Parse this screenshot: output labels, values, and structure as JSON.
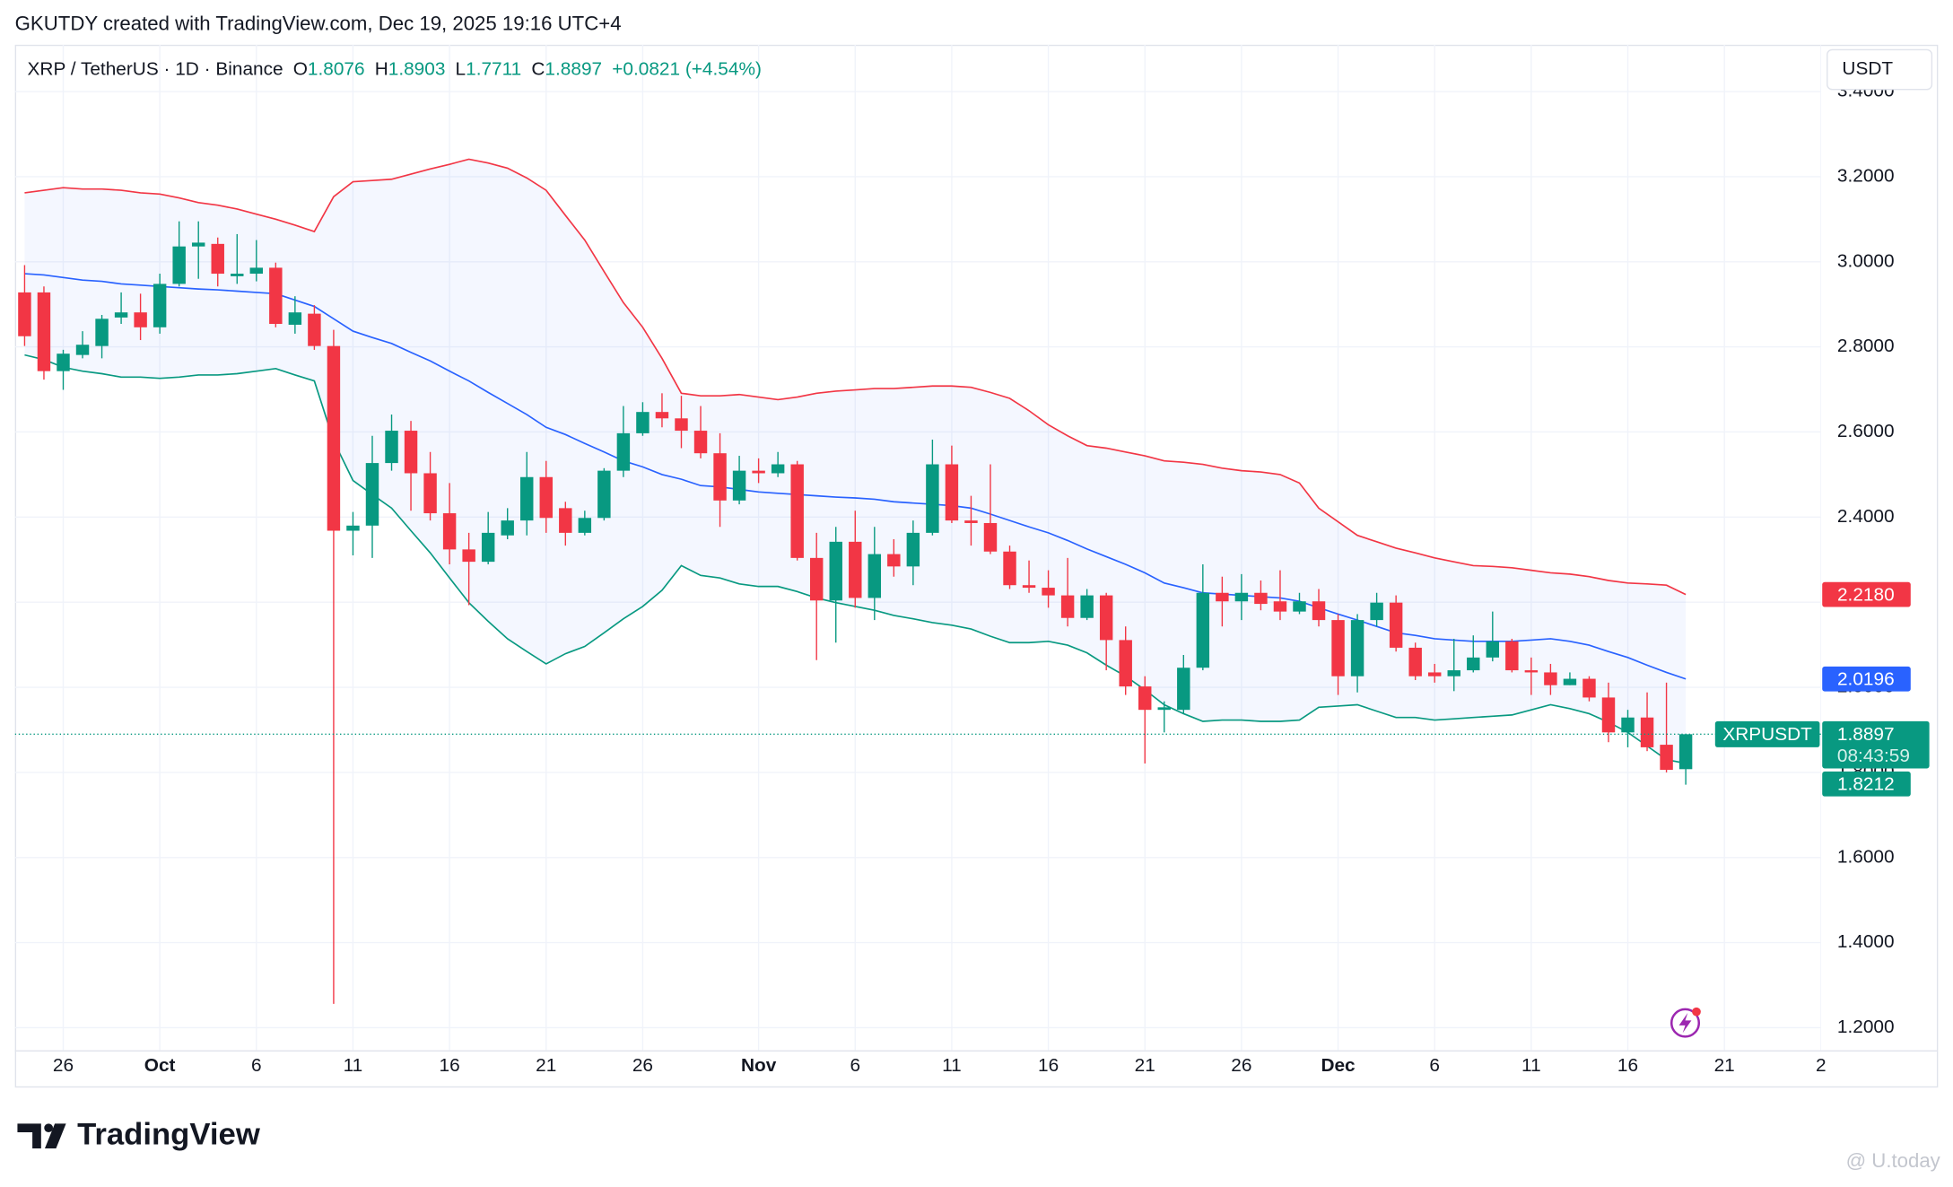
{
  "chart_data": {
    "type": "candlestick",
    "watermark": "GKUTDY created with TradingView.com, Dec 19, 2025 19:16 UTC+4",
    "title": "XRP / TetherUS · 1D · Binance",
    "ohlc_letters": [
      "O",
      "H",
      "L",
      "C"
    ],
    "change": "+0.0821 (+4.54%)",
    "currency": "USDT",
    "symbol_tag": "XRPUSDT",
    "countdown": "08:43:59",
    "brand": "TradingView",
    "source_mark": "@ U.today",
    "up_color": "#089981",
    "down_color": "#f23645",
    "grid": true,
    "x": [
      "2025-09-24",
      "2025-09-25",
      "2025-09-26",
      "2025-09-27",
      "2025-09-28",
      "2025-09-29",
      "2025-09-30",
      "2025-10-01",
      "2025-10-02",
      "2025-10-03",
      "2025-10-04",
      "2025-10-05",
      "2025-10-06",
      "2025-10-07",
      "2025-10-08",
      "2025-10-09",
      "2025-10-10",
      "2025-10-11",
      "2025-10-12",
      "2025-10-13",
      "2025-10-14",
      "2025-10-15",
      "2025-10-16",
      "2025-10-17",
      "2025-10-18",
      "2025-10-19",
      "2025-10-20",
      "2025-10-21",
      "2025-10-22",
      "2025-10-23",
      "2025-10-24",
      "2025-10-25",
      "2025-10-26",
      "2025-10-27",
      "2025-10-28",
      "2025-10-29",
      "2025-10-30",
      "2025-10-31",
      "2025-11-01",
      "2025-11-02",
      "2025-11-03",
      "2025-11-04",
      "2025-11-05",
      "2025-11-06",
      "2025-11-07",
      "2025-11-08",
      "2025-11-09",
      "2025-11-10",
      "2025-11-11",
      "2025-11-12",
      "2025-11-13",
      "2025-11-14",
      "2025-11-15",
      "2025-11-16",
      "2025-11-17",
      "2025-11-18",
      "2025-11-19",
      "2025-11-20",
      "2025-11-21",
      "2025-11-22",
      "2025-11-23",
      "2025-11-24",
      "2025-11-25",
      "2025-11-26",
      "2025-11-27",
      "2025-11-28",
      "2025-11-29",
      "2025-11-30",
      "2025-12-01",
      "2025-12-02",
      "2025-12-03",
      "2025-12-04",
      "2025-12-05",
      "2025-12-06",
      "2025-12-07",
      "2025-12-08",
      "2025-12-09",
      "2025-12-10",
      "2025-12-11",
      "2025-12-12",
      "2025-12-13",
      "2025-12-14",
      "2025-12-15",
      "2025-12-16",
      "2025-12-17",
      "2025-12-18",
      "2025-12-19"
    ],
    "open": [
      2.928,
      2.928,
      2.743,
      2.781,
      2.802,
      2.869,
      2.881,
      2.846,
      2.948,
      3.036,
      3.042,
      2.966,
      2.972,
      2.986,
      2.852,
      2.878,
      2.802,
      2.368,
      2.38,
      2.527,
      2.603,
      2.503,
      2.409,
      2.324,
      2.295,
      2.357,
      2.392,
      2.494,
      2.421,
      2.363,
      2.398,
      2.509,
      2.597,
      2.647,
      2.632,
      2.603,
      2.55,
      2.439,
      2.509,
      2.503,
      2.524,
      2.304,
      2.204,
      2.342,
      2.21,
      2.313,
      2.284,
      2.363,
      2.524,
      2.392,
      2.386,
      2.319,
      2.24,
      2.234,
      2.216,
      2.163,
      2.216,
      2.111,
      2.002,
      1.947,
      1.947,
      2.046,
      2.222,
      2.202,
      2.222,
      2.202,
      2.178,
      2.202,
      2.158,
      2.026,
      2.158,
      2.199,
      2.093,
      2.035,
      2.026,
      2.04,
      2.07,
      2.108,
      2.04,
      2.035,
      2.005,
      2.02,
      1.976,
      1.894,
      1.929,
      1.865,
      1.8076
    ],
    "high": [
      2.992,
      2.942,
      2.793,
      2.837,
      2.875,
      2.928,
      2.925,
      2.972,
      3.095,
      3.095,
      3.057,
      3.065,
      3.051,
      2.998,
      2.919,
      2.898,
      2.84,
      2.412,
      2.591,
      2.641,
      2.626,
      2.553,
      2.48,
      2.363,
      2.412,
      2.421,
      2.553,
      2.532,
      2.436,
      2.415,
      2.515,
      2.661,
      2.67,
      2.691,
      2.685,
      2.661,
      2.597,
      2.544,
      2.538,
      2.553,
      2.532,
      2.363,
      2.377,
      2.415,
      2.377,
      2.348,
      2.392,
      2.582,
      2.568,
      2.45,
      2.524,
      2.333,
      2.298,
      2.275,
      2.304,
      2.231,
      2.222,
      2.143,
      2.026,
      1.967,
      2.076,
      2.289,
      2.26,
      2.266,
      2.251,
      2.275,
      2.222,
      2.231,
      2.172,
      2.172,
      2.222,
      2.216,
      2.105,
      2.055,
      2.114,
      2.122,
      2.178,
      2.114,
      2.07,
      2.055,
      2.035,
      2.026,
      2.011,
      1.947,
      1.988,
      2.011,
      1.8903
    ],
    "low": [
      2.802,
      2.723,
      2.699,
      2.773,
      2.773,
      2.854,
      2.816,
      2.831,
      2.942,
      2.96,
      2.942,
      2.948,
      2.954,
      2.846,
      2.831,
      2.793,
      1.256,
      2.31,
      2.304,
      2.509,
      2.415,
      2.392,
      2.289,
      2.193,
      2.289,
      2.348,
      2.357,
      2.363,
      2.333,
      2.357,
      2.392,
      2.494,
      2.591,
      2.611,
      2.562,
      2.538,
      2.377,
      2.43,
      2.48,
      2.494,
      2.298,
      2.064,
      2.105,
      2.187,
      2.158,
      2.26,
      2.24,
      2.357,
      2.386,
      2.333,
      2.313,
      2.231,
      2.222,
      2.187,
      2.143,
      2.158,
      2.04,
      1.982,
      1.821,
      1.894,
      1.938,
      2.04,
      2.143,
      2.158,
      2.181,
      2.158,
      2.172,
      2.143,
      1.982,
      1.988,
      2.143,
      2.084,
      2.017,
      2.011,
      1.991,
      2.035,
      2.061,
      2.035,
      1.982,
      1.982,
      2.005,
      1.967,
      1.871,
      1.859,
      1.85,
      1.8,
      1.7711
    ],
    "close": [
      2.825,
      2.743,
      2.784,
      2.805,
      2.866,
      2.881,
      2.846,
      2.948,
      3.036,
      3.045,
      2.972,
      2.972,
      2.986,
      2.854,
      2.881,
      2.802,
      2.368,
      2.38,
      2.527,
      2.603,
      2.503,
      2.409,
      2.324,
      2.295,
      2.363,
      2.392,
      2.494,
      2.398,
      2.363,
      2.398,
      2.509,
      2.597,
      2.647,
      2.632,
      2.603,
      2.55,
      2.439,
      2.509,
      2.503,
      2.524,
      2.304,
      2.204,
      2.342,
      2.21,
      2.313,
      2.284,
      2.363,
      2.524,
      2.392,
      2.386,
      2.319,
      2.24,
      2.234,
      2.216,
      2.163,
      2.216,
      2.111,
      2.002,
      1.947,
      1.953,
      2.046,
      2.222,
      2.202,
      2.222,
      2.196,
      2.178,
      2.202,
      2.158,
      2.026,
      2.158,
      2.199,
      2.093,
      2.026,
      2.026,
      2.04,
      2.07,
      2.108,
      2.04,
      2.035,
      2.005,
      2.02,
      1.976,
      1.894,
      1.929,
      1.859,
      1.806,
      1.8897
    ],
    "bands": {
      "upper": {
        "color": "#f23645",
        "values": [
          3.162,
          3.168,
          3.174,
          3.171,
          3.171,
          3.168,
          3.162,
          3.159,
          3.15,
          3.139,
          3.133,
          3.124,
          3.112,
          3.1,
          3.086,
          3.071,
          3.153,
          3.188,
          3.191,
          3.194,
          3.206,
          3.218,
          3.229,
          3.241,
          3.232,
          3.22,
          3.197,
          3.168,
          3.109,
          3.051,
          2.977,
          2.904,
          2.846,
          2.773,
          2.691,
          2.685,
          2.685,
          2.688,
          2.682,
          2.676,
          2.682,
          2.691,
          2.696,
          2.699,
          2.702,
          2.702,
          2.705,
          2.708,
          2.708,
          2.705,
          2.693,
          2.679,
          2.65,
          2.617,
          2.591,
          2.568,
          2.562,
          2.553,
          2.544,
          2.532,
          2.529,
          2.524,
          2.515,
          2.509,
          2.506,
          2.5,
          2.48,
          2.421,
          2.389,
          2.357,
          2.342,
          2.327,
          2.316,
          2.304,
          2.295,
          2.286,
          2.284,
          2.281,
          2.275,
          2.269,
          2.266,
          2.26,
          2.251,
          2.245,
          2.243,
          2.24,
          2.218
        ],
        "value_labels": [
          null,
          null,
          null,
          null,
          null,
          null,
          null,
          null,
          null,
          null,
          null,
          null,
          null,
          null,
          null,
          null,
          null,
          null,
          null,
          null,
          null,
          null,
          null,
          null,
          null,
          null,
          null,
          null,
          null,
          null,
          null,
          null,
          null,
          null,
          null,
          null,
          null,
          null,
          null,
          null,
          null,
          null,
          null,
          null,
          null,
          null,
          null,
          null,
          null,
          null,
          null,
          null,
          null,
          null,
          null,
          null,
          null,
          null,
          null,
          null,
          null,
          null,
          null,
          null,
          null,
          null,
          null,
          null,
          null,
          null,
          null,
          null,
          null,
          null,
          null,
          null,
          null,
          null,
          null,
          null,
          null,
          null,
          null,
          null,
          null,
          null,
          "2.2180"
        ]
      },
      "middle": {
        "color": "#2962ff",
        "values": [
          2.972,
          2.969,
          2.963,
          2.957,
          2.954,
          2.948,
          2.945,
          2.942,
          2.939,
          2.936,
          2.934,
          2.931,
          2.928,
          2.925,
          2.91,
          2.895,
          2.866,
          2.837,
          2.822,
          2.808,
          2.787,
          2.767,
          2.743,
          2.72,
          2.693,
          2.667,
          2.641,
          2.611,
          2.594,
          2.573,
          2.553,
          2.532,
          2.518,
          2.5,
          2.489,
          2.474,
          2.471,
          2.465,
          2.459,
          2.456,
          2.453,
          2.45,
          2.447,
          2.445,
          2.442,
          2.436,
          2.433,
          2.43,
          2.427,
          2.421,
          2.407,
          2.392,
          2.377,
          2.363,
          2.345,
          2.325,
          2.307,
          2.289,
          2.269,
          2.245,
          2.234,
          2.222,
          2.219,
          2.216,
          2.213,
          2.21,
          2.202,
          2.187,
          2.172,
          2.158,
          2.143,
          2.128,
          2.122,
          2.114,
          2.111,
          2.108,
          2.108,
          2.108,
          2.111,
          2.114,
          2.108,
          2.099,
          2.084,
          2.07,
          2.052,
          2.035,
          2.0196
        ]
      },
      "lower": {
        "color": "#089981",
        "values": [
          2.781,
          2.77,
          2.752,
          2.743,
          2.737,
          2.729,
          2.729,
          2.726,
          2.729,
          2.734,
          2.734,
          2.737,
          2.743,
          2.749,
          2.734,
          2.72,
          2.579,
          2.486,
          2.453,
          2.421,
          2.368,
          2.316,
          2.257,
          2.199,
          2.155,
          2.114,
          2.084,
          2.055,
          2.079,
          2.096,
          2.128,
          2.161,
          2.19,
          2.228,
          2.286,
          2.263,
          2.257,
          2.243,
          2.237,
          2.237,
          2.225,
          2.21,
          2.199,
          2.19,
          2.181,
          2.169,
          2.161,
          2.152,
          2.146,
          2.137,
          2.12,
          2.105,
          2.105,
          2.108,
          2.099,
          2.081,
          2.052,
          2.026,
          1.994,
          1.959,
          1.938,
          1.92,
          1.923,
          1.923,
          1.92,
          1.92,
          1.923,
          1.953,
          1.956,
          1.959,
          1.944,
          1.929,
          1.929,
          1.923,
          1.926,
          1.929,
          1.932,
          1.935,
          1.947,
          1.959,
          1.95,
          1.938,
          1.918,
          1.894,
          1.862,
          1.83,
          1.8212
        ],
        "value_labels": [
          null,
          null,
          null,
          null,
          null,
          null,
          null,
          null,
          null,
          null,
          null,
          null,
          null,
          null,
          null,
          null,
          null,
          null,
          null,
          null,
          null,
          null,
          null,
          null,
          null,
          null,
          null,
          null,
          null,
          null,
          null,
          null,
          null,
          null,
          null,
          null,
          null,
          null,
          null,
          null,
          null,
          null,
          null,
          null,
          null,
          null,
          null,
          null,
          null,
          null,
          null,
          null,
          null,
          null,
          null,
          null,
          null,
          null,
          null,
          null,
          null,
          null,
          null,
          null,
          null,
          null,
          null,
          null,
          null,
          null,
          null,
          null,
          null,
          null,
          null,
          null,
          null,
          null,
          null,
          null,
          null,
          null,
          null,
          null,
          null,
          null,
          "1.8212"
        ]
      }
    },
    "middle_label": "2.0196",
    "xlim": [
      "2025-09-23T12:00:00Z",
      "2025-12-26T00:00:00Z"
    ],
    "xticks": [
      {
        "value": "2025-09-26",
        "label": "26"
      },
      {
        "value": "2025-10-01",
        "label": "Oct"
      },
      {
        "value": "2025-10-06",
        "label": "6"
      },
      {
        "value": "2025-10-11",
        "label": "11"
      },
      {
        "value": "2025-10-16",
        "label": "16"
      },
      {
        "value": "2025-10-21",
        "label": "21"
      },
      {
        "value": "2025-10-26",
        "label": "26"
      },
      {
        "value": "2025-11-01",
        "label": "Nov"
      },
      {
        "value": "2025-11-06",
        "label": "6"
      },
      {
        "value": "2025-11-11",
        "label": "11"
      },
      {
        "value": "2025-11-16",
        "label": "16"
      },
      {
        "value": "2025-11-21",
        "label": "21"
      },
      {
        "value": "2025-11-26",
        "label": "26"
      },
      {
        "value": "2025-12-01",
        "label": "Dec"
      },
      {
        "value": "2025-12-06",
        "label": "6"
      },
      {
        "value": "2025-12-11",
        "label": "11"
      },
      {
        "value": "2025-12-16",
        "label": "16"
      },
      {
        "value": "2025-12-21",
        "label": "21"
      },
      {
        "value": "2025-12-26",
        "label": "2"
      }
    ],
    "ylim": [
      1.147,
      3.51
    ],
    "yticks": [
      {
        "value": 1.2,
        "label": "1.2000"
      },
      {
        "value": 1.4,
        "label": "1.4000"
      },
      {
        "value": 1.6,
        "label": "1.6000"
      },
      {
        "value": 1.8,
        "label": "1.8000"
      },
      {
        "value": 2.0,
        "label": "2.0000"
      },
      {
        "value": 2.2,
        "label": "2.2000"
      },
      {
        "value": 2.4,
        "label": "2.4000"
      },
      {
        "value": 2.6,
        "label": "2.6000"
      },
      {
        "value": 2.8,
        "label": "2.8000"
      },
      {
        "value": 3.0,
        "label": "3.0000"
      },
      {
        "value": 3.2,
        "label": "3.2000"
      },
      {
        "value": 3.4,
        "label": "3.4000"
      }
    ]
  }
}
